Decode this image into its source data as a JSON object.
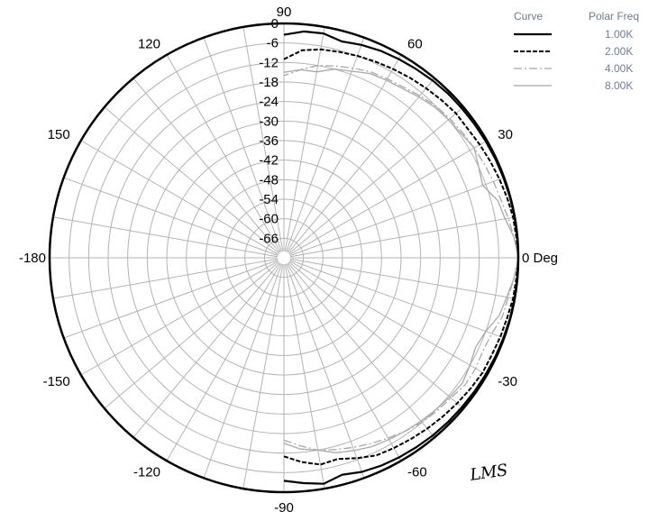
{
  "chart_data": {
    "type": "polar",
    "angle_unit": "Deg",
    "radial_unit": "dB",
    "radial_range": [
      -72,
      0
    ],
    "radial_ticks": [
      "0",
      "-6",
      "-12",
      "-18",
      "-24",
      "-30",
      "-36",
      "-42",
      "-48",
      "-54",
      "-60",
      "-66"
    ],
    "angle_ticks": [
      {
        "deg": 0,
        "label": "0 Deg"
      },
      {
        "deg": 30,
        "label": "30"
      },
      {
        "deg": 60,
        "label": "60"
      },
      {
        "deg": 90,
        "label": "90"
      },
      {
        "deg": 120,
        "label": "120"
      },
      {
        "deg": 150,
        "label": "150"
      },
      {
        "deg": 180,
        "label": "-180"
      },
      {
        "deg": -150,
        "label": "-150"
      },
      {
        "deg": -120,
        "label": "-120"
      },
      {
        "deg": -90,
        "label": "-90"
      },
      {
        "deg": -60,
        "label": "-60"
      },
      {
        "deg": -30,
        "label": "-30"
      }
    ],
    "grid": true,
    "legend_position": "top-right",
    "legend_headers": {
      "curve": "Curve",
      "freq": "Polar Freq"
    },
    "series": [
      {
        "name": "1.00K",
        "style": "solid",
        "color": "#000000",
        "points": [
          [
            -90,
            -3.5
          ],
          [
            -85,
            -2.5
          ],
          [
            -80,
            -1.5
          ],
          [
            -75,
            -3
          ],
          [
            -70,
            -2
          ],
          [
            -65,
            -1.5
          ],
          [
            -60,
            -1.2
          ],
          [
            -55,
            -1
          ],
          [
            -50,
            -0.8
          ],
          [
            -45,
            -0.7
          ],
          [
            -40,
            -0.6
          ],
          [
            -35,
            -0.5
          ],
          [
            -30,
            -0.4
          ],
          [
            -25,
            -0.3
          ],
          [
            -20,
            -0.2
          ],
          [
            -15,
            -0.1
          ],
          [
            -10,
            -0.05
          ],
          [
            -5,
            0
          ],
          [
            0,
            0
          ],
          [
            5,
            0
          ],
          [
            10,
            -0.05
          ],
          [
            15,
            -0.1
          ],
          [
            20,
            -0.2
          ],
          [
            25,
            -0.3
          ],
          [
            30,
            -0.4
          ],
          [
            35,
            -0.5
          ],
          [
            40,
            -0.6
          ],
          [
            45,
            -0.7
          ],
          [
            50,
            -0.9
          ],
          [
            55,
            -1.2
          ],
          [
            60,
            -1.5
          ],
          [
            65,
            -1.8
          ],
          [
            70,
            -2.4
          ],
          [
            75,
            -3.2
          ],
          [
            80,
            -2
          ],
          [
            85,
            -2.2
          ],
          [
            90,
            -3.5
          ]
        ]
      },
      {
        "name": "2.00K",
        "style": "dashed",
        "color": "#000000",
        "points": [
          [
            -90,
            -11
          ],
          [
            -85,
            -9
          ],
          [
            -80,
            -7.5
          ],
          [
            -75,
            -8
          ],
          [
            -70,
            -6.5
          ],
          [
            -65,
            -5
          ],
          [
            -60,
            -4.5
          ],
          [
            -55,
            -4
          ],
          [
            -50,
            -3.5
          ],
          [
            -45,
            -3
          ],
          [
            -40,
            -2.5
          ],
          [
            -35,
            -2
          ],
          [
            -30,
            -1.5
          ],
          [
            -25,
            -1.5
          ],
          [
            -20,
            -1.2
          ],
          [
            -15,
            -1
          ],
          [
            -10,
            -0.5
          ],
          [
            -5,
            -0.3
          ],
          [
            0,
            0
          ],
          [
            5,
            -0.3
          ],
          [
            10,
            -0.5
          ],
          [
            15,
            -1
          ],
          [
            20,
            -1.5
          ],
          [
            25,
            -2
          ],
          [
            30,
            -2.5
          ],
          [
            35,
            -3
          ],
          [
            40,
            -3
          ],
          [
            45,
            -3.5
          ],
          [
            50,
            -4
          ],
          [
            55,
            -4.5
          ],
          [
            60,
            -5
          ],
          [
            65,
            -5.5
          ],
          [
            70,
            -6
          ],
          [
            75,
            -6.5
          ],
          [
            80,
            -7
          ],
          [
            85,
            -8
          ],
          [
            90,
            -11
          ]
        ]
      },
      {
        "name": "4.00K",
        "style": "dashdot",
        "color": "#a8a8a8",
        "points": [
          [
            -90,
            -16
          ],
          [
            -85,
            -14
          ],
          [
            -80,
            -12
          ],
          [
            -75,
            -11
          ],
          [
            -70,
            -10
          ],
          [
            -65,
            -9
          ],
          [
            -60,
            -8
          ],
          [
            -55,
            -7
          ],
          [
            -50,
            -6
          ],
          [
            -45,
            -5.5
          ],
          [
            -40,
            -5
          ],
          [
            -35,
            -4
          ],
          [
            -30,
            -4
          ],
          [
            -25,
            -4.5
          ],
          [
            -20,
            -4
          ],
          [
            -15,
            -2.5
          ],
          [
            -10,
            -2
          ],
          [
            -5,
            -1
          ],
          [
            0,
            0
          ],
          [
            5,
            -1
          ],
          [
            10,
            -2
          ],
          [
            15,
            -3
          ],
          [
            20,
            -3.5
          ],
          [
            25,
            -4
          ],
          [
            30,
            -4.5
          ],
          [
            35,
            -5
          ],
          [
            40,
            -5.5
          ],
          [
            45,
            -6
          ],
          [
            50,
            -7
          ],
          [
            55,
            -8
          ],
          [
            60,
            -8.5
          ],
          [
            65,
            -9
          ],
          [
            70,
            -10
          ],
          [
            75,
            -11
          ],
          [
            80,
            -12
          ],
          [
            85,
            -14
          ],
          [
            90,
            -16
          ]
        ]
      },
      {
        "name": "8.00K",
        "style": "solid",
        "color": "#a8a8a8",
        "points": [
          [
            -90,
            -15
          ],
          [
            -85,
            -13
          ],
          [
            -80,
            -12
          ],
          [
            -75,
            -10
          ],
          [
            -70,
            -9
          ],
          [
            -65,
            -8
          ],
          [
            -60,
            -7.5
          ],
          [
            -55,
            -7
          ],
          [
            -50,
            -6.5
          ],
          [
            -45,
            -6
          ],
          [
            -40,
            -5.5
          ],
          [
            -35,
            -5
          ],
          [
            -30,
            -6
          ],
          [
            -25,
            -7
          ],
          [
            -20,
            -6
          ],
          [
            -15,
            -3.5
          ],
          [
            -10,
            -2.5
          ],
          [
            -5,
            -1
          ],
          [
            0,
            0
          ],
          [
            5,
            -1
          ],
          [
            10,
            -3
          ],
          [
            15,
            -4
          ],
          [
            20,
            -7
          ],
          [
            25,
            -6
          ],
          [
            30,
            -4.5
          ],
          [
            35,
            -5.5
          ],
          [
            40,
            -6
          ],
          [
            45,
            -6.5
          ],
          [
            50,
            -7.5
          ],
          [
            55,
            -8.5
          ],
          [
            60,
            -9
          ],
          [
            65,
            -9.5
          ],
          [
            70,
            -11
          ],
          [
            75,
            -12
          ],
          [
            80,
            -14
          ],
          [
            85,
            -14
          ],
          [
            90,
            -15
          ]
        ]
      }
    ]
  },
  "logo": {
    "text": "LMS",
    "label": "lms-logo"
  }
}
